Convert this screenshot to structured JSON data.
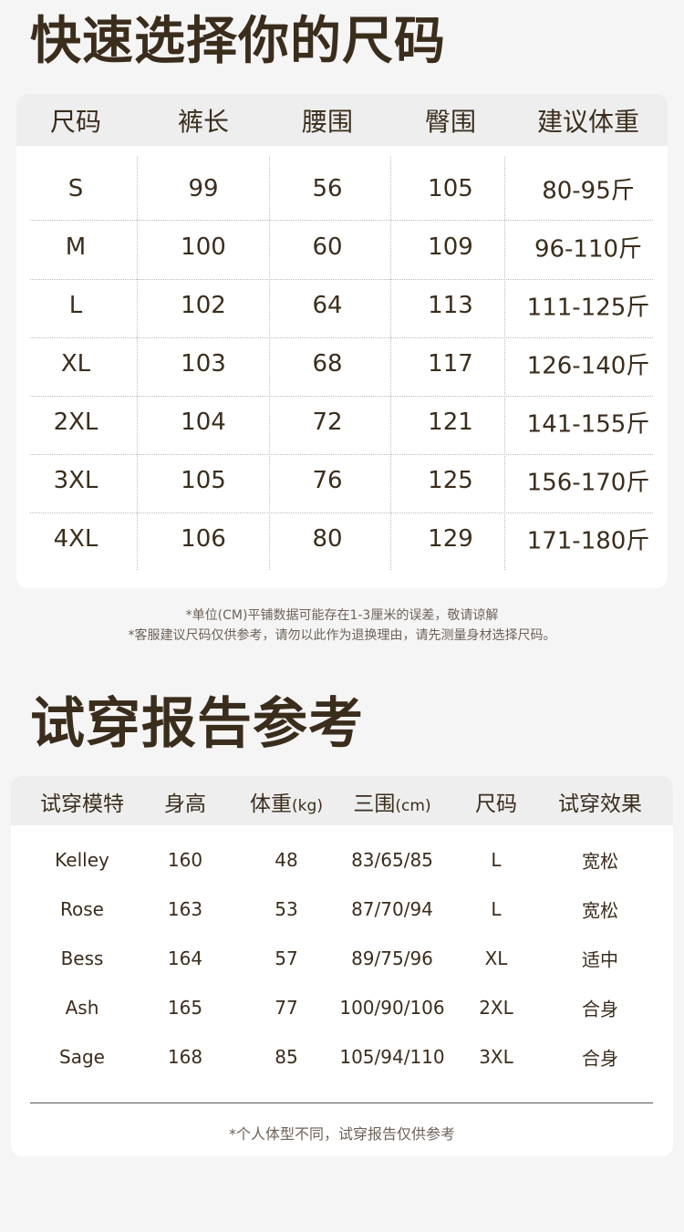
{
  "size_chart": {
    "title": "快速选择你的尺码",
    "headers": [
      "尺码",
      "裤长",
      "腰围",
      "臀围",
      "建议体重"
    ],
    "rows": [
      [
        "S",
        "99",
        "56",
        "105",
        "80-95斤"
      ],
      [
        "M",
        "100",
        "60",
        "109",
        "96-110斤"
      ],
      [
        "L",
        "102",
        "64",
        "113",
        "111-125斤"
      ],
      [
        "XL",
        "103",
        "68",
        "117",
        "126-140斤"
      ],
      [
        "2XL",
        "104",
        "72",
        "121",
        "141-155斤"
      ],
      [
        "3XL",
        "105",
        "76",
        "125",
        "156-170斤"
      ],
      [
        "4XL",
        "106",
        "80",
        "129",
        "171-180斤"
      ]
    ],
    "notes": [
      "*单位(CM)平铺数据可能存在1-3厘米的误差，敬请谅解",
      "*客服建议尺码仅供参考，请勿以此作为退换理由，请先测量身材选择尺码。"
    ]
  },
  "fit_report": {
    "title": "试穿报告参考",
    "headers": [
      {
        "main": "试穿模特",
        "unit": ""
      },
      {
        "main": "身高",
        "unit": ""
      },
      {
        "main": "体重",
        "unit": "(kg)"
      },
      {
        "main": "三围",
        "unit": "(cm)"
      },
      {
        "main": "尺码",
        "unit": ""
      },
      {
        "main": "试穿效果",
        "unit": ""
      }
    ],
    "rows": [
      [
        "Kelley",
        "160",
        "48",
        "83/65/85",
        "L",
        "宽松"
      ],
      [
        "Rose",
        "163",
        "53",
        "87/70/94",
        "L",
        "宽松"
      ],
      [
        "Bess",
        "164",
        "57",
        "89/75/96",
        "XL",
        "适中"
      ],
      [
        "Ash",
        "165",
        "77",
        "100/90/106",
        "2XL",
        "合身"
      ],
      [
        "Sage",
        "168",
        "85",
        "105/94/110",
        "3XL",
        "合身"
      ]
    ],
    "note": "*个人体型不同，试穿报告仅供参考"
  },
  "colors": {
    "text": "#3b2d1c",
    "background": "#f5f5f5",
    "header_bg": "#eeeeee",
    "card": "#ffffff"
  }
}
